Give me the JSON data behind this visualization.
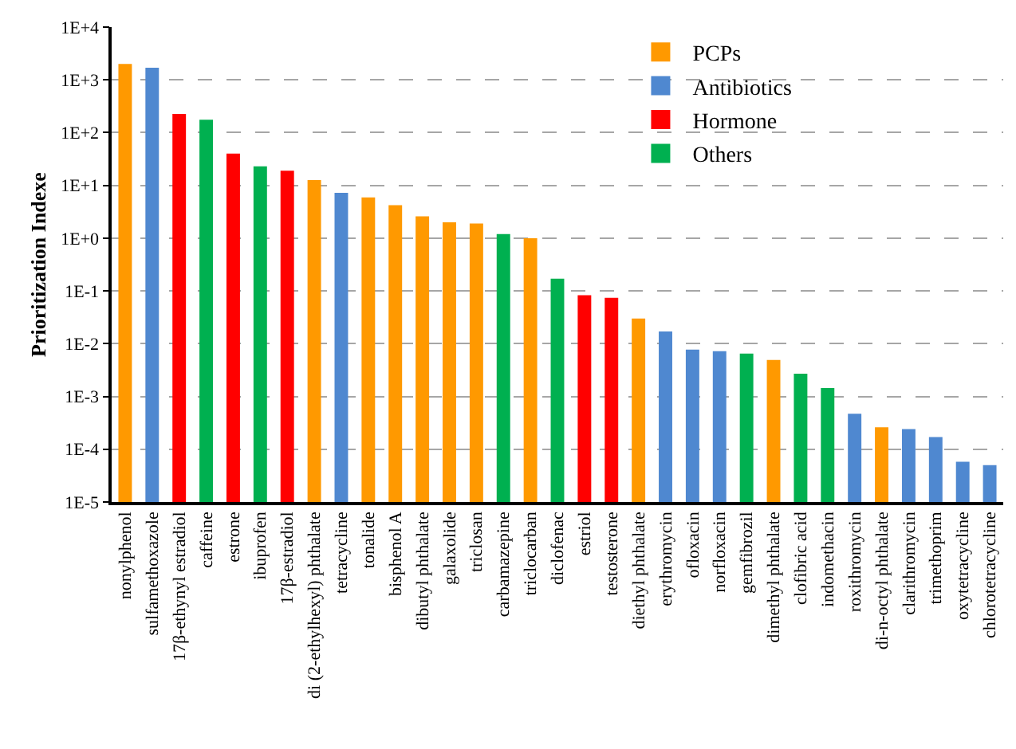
{
  "chart_data": {
    "type": "bar",
    "ylabel": "Prioritization Indexe",
    "categories": [
      "nonylphenol",
      "sulfamethoxazole",
      "17β-ethynyl estradiol",
      "caffeine",
      "estrone",
      "ibuprofen",
      "17β-estradiol",
      "di (2-ethylhexyl) phthalate",
      "tetracycline",
      "tonalide",
      "bisphenol A",
      "dibutyl phthalate",
      "galaxolide",
      "triclosan",
      "carbamazepine",
      "triclocarban",
      "diclofenac",
      "estriol",
      "testosterone",
      "diethyl phthalate",
      "erythromycin",
      "ofloxacin",
      "norfloxacin",
      "gemfibrozil",
      "dimethyl phthalate",
      "clofibric acid",
      "indomethacin",
      "roxithromycin",
      "di-n-octyl phthalate",
      "clarithromycin",
      "trimethoprim",
      "oxytetracycline",
      "chlorotetracycline"
    ],
    "series": [
      {
        "name": "PCPs",
        "color": "#ff9900",
        "values": [
          2000,
          null,
          null,
          null,
          null,
          null,
          null,
          12.6,
          null,
          5.9,
          4.2,
          2.6,
          2.0,
          1.9,
          null,
          1.0,
          null,
          null,
          null,
          0.03,
          null,
          null,
          null,
          null,
          0.0049,
          null,
          null,
          null,
          0.00026,
          null,
          null,
          null,
          null
        ]
      },
      {
        "name": "Antibiotics",
        "color": "#4f88d0",
        "values": [
          null,
          1700,
          null,
          null,
          null,
          null,
          null,
          null,
          7.2,
          null,
          null,
          null,
          null,
          null,
          null,
          null,
          null,
          null,
          null,
          null,
          0.017,
          0.0077,
          0.0072,
          null,
          null,
          null,
          null,
          0.00047,
          null,
          0.00024,
          0.00017,
          5.8e-05,
          5e-05
        ]
      },
      {
        "name": "Hormone",
        "color": "#ff0000",
        "values": [
          null,
          null,
          225,
          null,
          40,
          null,
          19,
          null,
          null,
          null,
          null,
          null,
          null,
          null,
          null,
          null,
          null,
          0.083,
          0.074,
          null,
          null,
          null,
          null,
          null,
          null,
          null,
          null,
          null,
          null,
          null,
          null,
          null,
          null
        ]
      },
      {
        "name": "Others",
        "color": "#00b050",
        "values": [
          null,
          null,
          null,
          175,
          null,
          23,
          null,
          null,
          null,
          null,
          null,
          null,
          null,
          null,
          1.2,
          null,
          0.17,
          null,
          null,
          null,
          null,
          null,
          null,
          0.0065,
          null,
          0.0027,
          0.00144,
          null,
          null,
          null,
          null,
          null,
          null
        ]
      }
    ],
    "log": "y",
    "ylim": [
      1e-05,
      10000
    ],
    "yticks": [
      {
        "value": 1e-05,
        "label": "1E-5"
      },
      {
        "value": 0.0001,
        "label": "1E-4"
      },
      {
        "value": 0.001,
        "label": "1E-3"
      },
      {
        "value": 0.01,
        "label": "1E-2"
      },
      {
        "value": 0.1,
        "label": "1E-1"
      },
      {
        "value": 1,
        "label": "1E+0"
      },
      {
        "value": 10,
        "label": "1E+1"
      },
      {
        "value": 100,
        "label": "1E+2"
      },
      {
        "value": 1000,
        "label": "1E+3"
      },
      {
        "value": 10000,
        "label": "1E+4"
      }
    ],
    "grid": "y",
    "legend": "top right"
  }
}
